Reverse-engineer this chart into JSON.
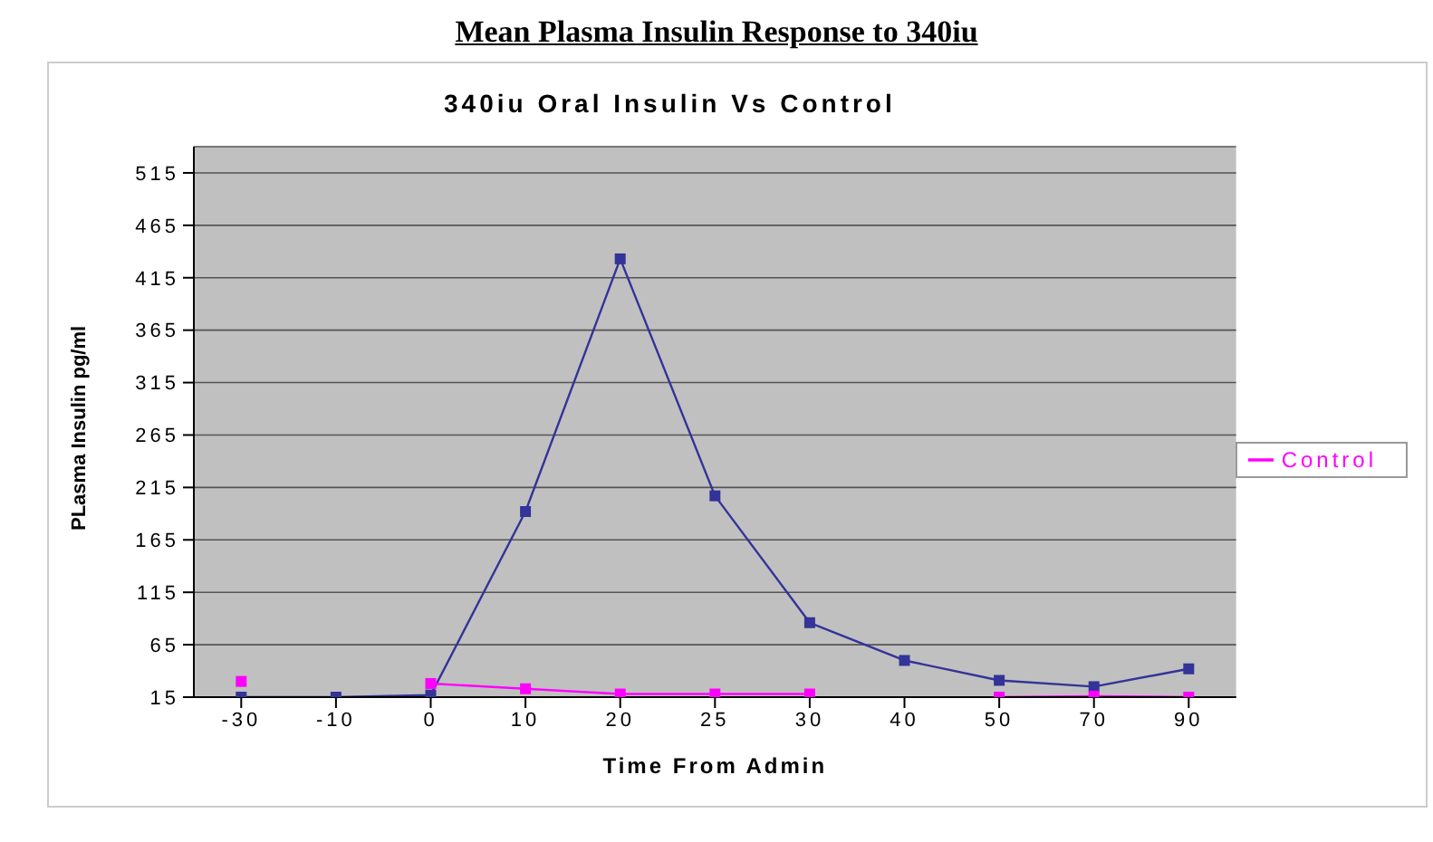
{
  "chart_data": {
    "type": "line",
    "title": "Mean Plasma Insulin Response to 340iu",
    "subtitle": "340iu Oral Insulin Vs Control",
    "xlabel": "Time From Admin",
    "ylabel": "PLasma Insulin pg/ml",
    "categories": [
      "-30",
      "-10",
      "0",
      "10",
      "20",
      "25",
      "30",
      "40",
      "50",
      "70",
      "90"
    ],
    "series": [
      {
        "color": "#333399",
        "values": [
          15,
          15,
          17,
          192,
          433,
          207,
          86,
          50,
          31,
          25,
          42
        ]
      },
      {
        "name": "Control",
        "color": "#ff00ff",
        "values": [
          30,
          null,
          28,
          23,
          18,
          18,
          18,
          null,
          15,
          16,
          15
        ]
      }
    ],
    "ylim": [
      15,
      540
    ],
    "yticks": [
      15,
      65,
      115,
      165,
      215,
      265,
      315,
      365,
      415,
      465,
      515
    ],
    "grid": "y",
    "legend": "right",
    "marker": "square",
    "line_style": "solid"
  }
}
